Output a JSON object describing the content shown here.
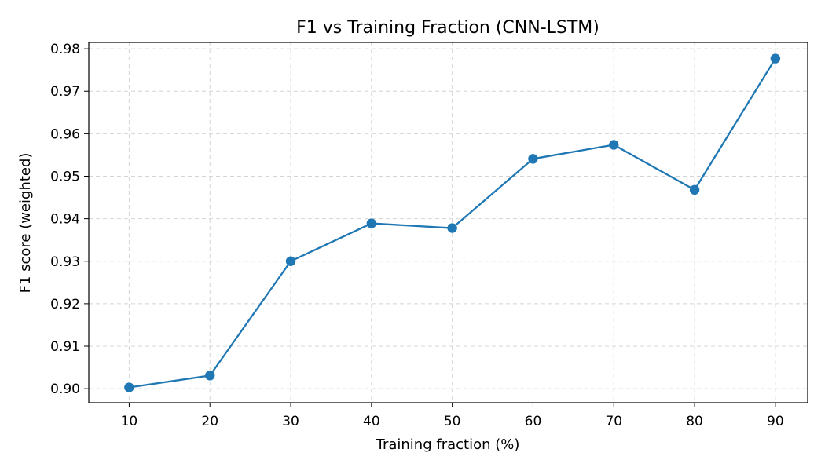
{
  "chart_data": {
    "type": "line",
    "title": "F1 vs Training Fraction (CNN-LSTM)",
    "xlabel": "Training fraction (%)",
    "ylabel": "F1 score (weighted)",
    "x": [
      10,
      20,
      30,
      40,
      50,
      60,
      70,
      80,
      90
    ],
    "series": [
      {
        "values": [
          0.9003,
          0.9031,
          0.93,
          0.9389,
          0.9378,
          0.9541,
          0.9574,
          0.9468,
          0.9777
        ],
        "color": "#1f77b4",
        "marker": "circle"
      }
    ],
    "xlim": [
      5,
      94
    ],
    "ylim": [
      0.8967,
      0.9815
    ],
    "xticks": [
      10,
      20,
      30,
      40,
      50,
      60,
      70,
      80,
      90
    ],
    "xtick_labels": [
      "10",
      "20",
      "30",
      "40",
      "50",
      "60",
      "70",
      "80",
      "90"
    ],
    "yticks": [
      0.9,
      0.91,
      0.92,
      0.93,
      0.94,
      0.95,
      0.96,
      0.97,
      0.98
    ],
    "ytick_labels": [
      "0.90",
      "0.91",
      "0.92",
      "0.93",
      "0.94",
      "0.95",
      "0.96",
      "0.97",
      "0.98"
    ],
    "grid": true,
    "grid_style": "dashed",
    "legend": false
  }
}
